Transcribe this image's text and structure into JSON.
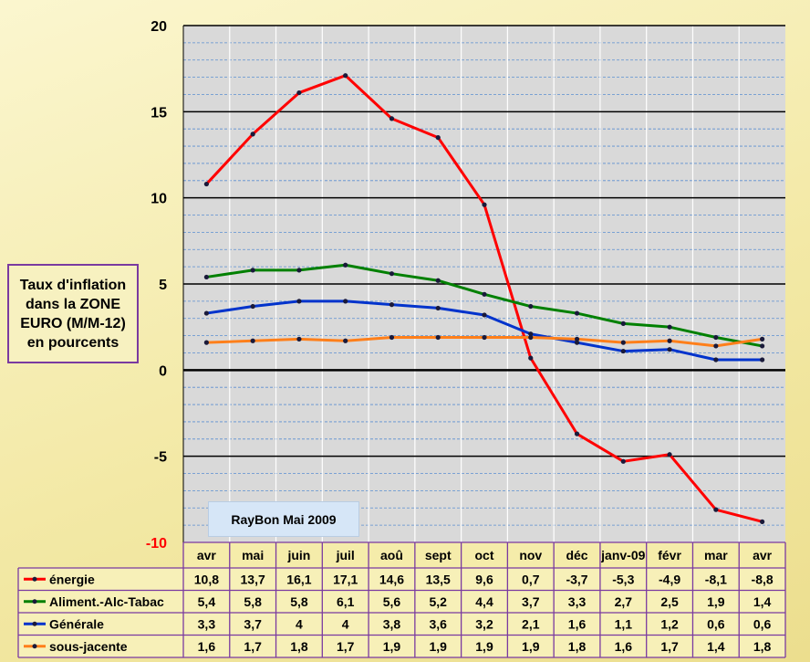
{
  "chart_data": {
    "type": "line",
    "ylabel": "Taux d'inflation dans la ZONE EURO (M/M-12) en pourcents",
    "annotation": "RayBon Mai 2009",
    "ylim": [
      -10,
      20
    ],
    "yticks": [
      20,
      15,
      10,
      5,
      0,
      -5,
      -10
    ],
    "ytick_labels": [
      "20",
      "15",
      "10",
      "5",
      "0",
      "-5",
      "-10"
    ],
    "grid": true,
    "legend": "data-table",
    "categories": [
      "avr",
      "mai",
      "juin",
      "juil",
      "aoû",
      "sept",
      "oct",
      "nov",
      "déc",
      "janv-09",
      "févr",
      "mar",
      "avr"
    ],
    "series": [
      {
        "name": "énergie",
        "color": "#ff0000",
        "values": [
          10.8,
          13.7,
          16.1,
          17.1,
          14.6,
          13.5,
          9.6,
          0.7,
          -3.7,
          -5.3,
          -4.9,
          -8.1,
          -8.8
        ],
        "labels": [
          "10,8",
          "13,7",
          "16,1",
          "17,1",
          "14,6",
          "13,5",
          "9,6",
          "0,7",
          "-3,7",
          "-5,3",
          "-4,9",
          "-8,1",
          "-8,8"
        ]
      },
      {
        "name": "Aliment.-Alc-Tabac",
        "color": "#008000",
        "values": [
          5.4,
          5.8,
          5.8,
          6.1,
          5.6,
          5.2,
          4.4,
          3.7,
          3.3,
          2.7,
          2.5,
          1.9,
          1.4
        ],
        "labels": [
          "5,4",
          "5,8",
          "5,8",
          "6,1",
          "5,6",
          "5,2",
          "4,4",
          "3,7",
          "3,3",
          "2,7",
          "2,5",
          "1,9",
          "1,4"
        ]
      },
      {
        "name": "Générale",
        "color": "#0033cc",
        "values": [
          3.3,
          3.7,
          4,
          4,
          3.8,
          3.6,
          3.2,
          2.1,
          1.6,
          1.1,
          1.2,
          0.6,
          0.6
        ],
        "labels": [
          "3,3",
          "3,7",
          "4",
          "4",
          "3,8",
          "3,6",
          "3,2",
          "2,1",
          "1,6",
          "1,1",
          "1,2",
          "0,6",
          "0,6"
        ]
      },
      {
        "name": "sous-jacente",
        "color": "#ff7f1a",
        "values": [
          1.6,
          1.7,
          1.8,
          1.7,
          1.9,
          1.9,
          1.9,
          1.9,
          1.8,
          1.6,
          1.7,
          1.4,
          1.8
        ],
        "labels": [
          "1,6",
          "1,7",
          "1,8",
          "1,7",
          "1,9",
          "1,9",
          "1,9",
          "1,9",
          "1,8",
          "1,6",
          "1,7",
          "1,4",
          "1,8"
        ]
      }
    ]
  }
}
